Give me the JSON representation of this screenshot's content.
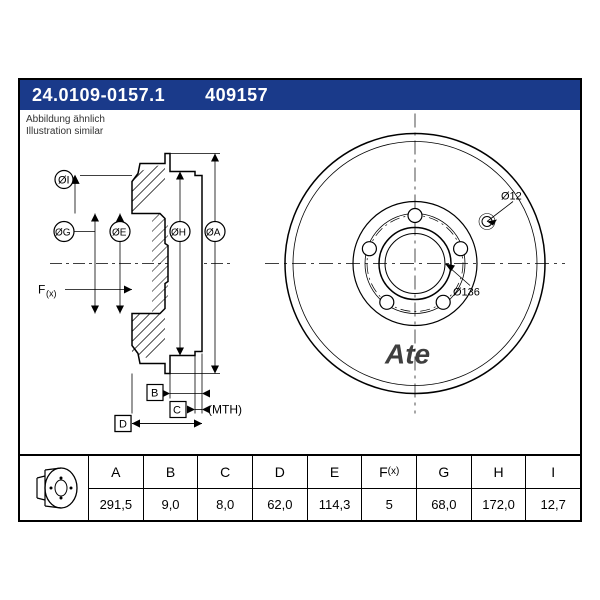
{
  "title": {
    "partNumberLong": "24.0109-0157.1",
    "partNumberShort": "409157",
    "barColor": "#1a3a8a",
    "textColor": "#ffffff",
    "fontSize": 18
  },
  "caption": {
    "de": "Abbildung ähnlich",
    "en": "Illustration similar",
    "fontSize": 10,
    "color": "#333333"
  },
  "brand": "Ate",
  "faceView": {
    "boltHoles": 5,
    "holeCallout": "Ø12",
    "centerBoreCallout": "Ø136",
    "outerDiameterPx": 260,
    "strokeColor": "#000000",
    "fillColor": "#ffffff"
  },
  "profileView": {
    "dimensionLetters": [
      "ØI",
      "ØG",
      "ØE",
      "ØH",
      "ØA",
      "F(x)",
      "B",
      "C",
      "D"
    ],
    "mthLabel": "(MTH)",
    "hatchAngleDeg": 45,
    "strokeColor": "#000000"
  },
  "specTable": {
    "borderColor": "#000000",
    "fontSize": 14,
    "columns": [
      {
        "header": "A",
        "value": "291,5"
      },
      {
        "header": "B",
        "value": "9,0"
      },
      {
        "header": "C",
        "value": "8,0"
      },
      {
        "header": "D",
        "value": "62,0"
      },
      {
        "header": "E",
        "value": "114,3"
      },
      {
        "header": "F(x)",
        "value": "5"
      },
      {
        "header": "G",
        "value": "68,0"
      },
      {
        "header": "H",
        "value": "172,0"
      },
      {
        "header": "I",
        "value": "12,7"
      }
    ]
  },
  "sheet": {
    "widthPx": 560,
    "heightPx": 440,
    "borderColor": "#000000",
    "backgroundColor": "#ffffff"
  }
}
